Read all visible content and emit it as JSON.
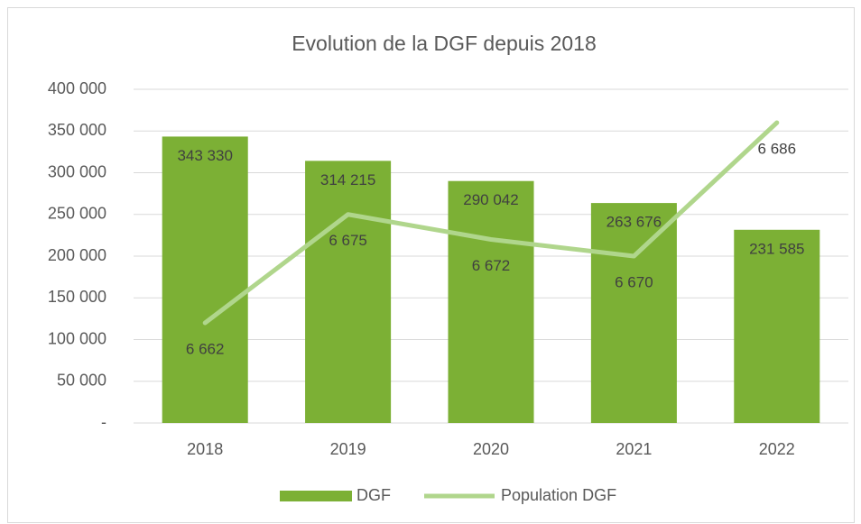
{
  "chart_data": {
    "type": "bar",
    "title": "Evolution de la DGF depuis 2018",
    "categories": [
      "2018",
      "2019",
      "2020",
      "2021",
      "2022"
    ],
    "series": [
      {
        "name": "DGF",
        "type": "bar",
        "color": "#7cb035",
        "values": [
          343330,
          314215,
          290042,
          263676,
          231585
        ],
        "value_labels": [
          "343 330",
          "314 215",
          "290 042",
          "263 676",
          "231 585"
        ]
      },
      {
        "name": "Population DGF",
        "type": "line",
        "axis": "y2",
        "color": "#b0d68c",
        "values": [
          6662,
          6675,
          6672,
          6670,
          6686
        ],
        "value_labels": [
          "6 662",
          "6 675",
          "6 672",
          "6 670",
          "6 686"
        ]
      }
    ],
    "ylim": [
      0,
      400000
    ],
    "yticks": [
      {
        "value": 0,
        "label": "-"
      },
      {
        "value": 50000,
        "label": "50 000"
      },
      {
        "value": 100000,
        "label": "100 000"
      },
      {
        "value": 150000,
        "label": "150 000"
      },
      {
        "value": 200000,
        "label": "200 000"
      },
      {
        "value": 250000,
        "label": "250 000"
      },
      {
        "value": 300000,
        "label": "300 000"
      },
      {
        "value": 350000,
        "label": "350 000"
      },
      {
        "value": 400000,
        "label": "400 000"
      }
    ],
    "y2lim": [
      6650,
      6690
    ],
    "grid": true,
    "legend": "bottom"
  }
}
